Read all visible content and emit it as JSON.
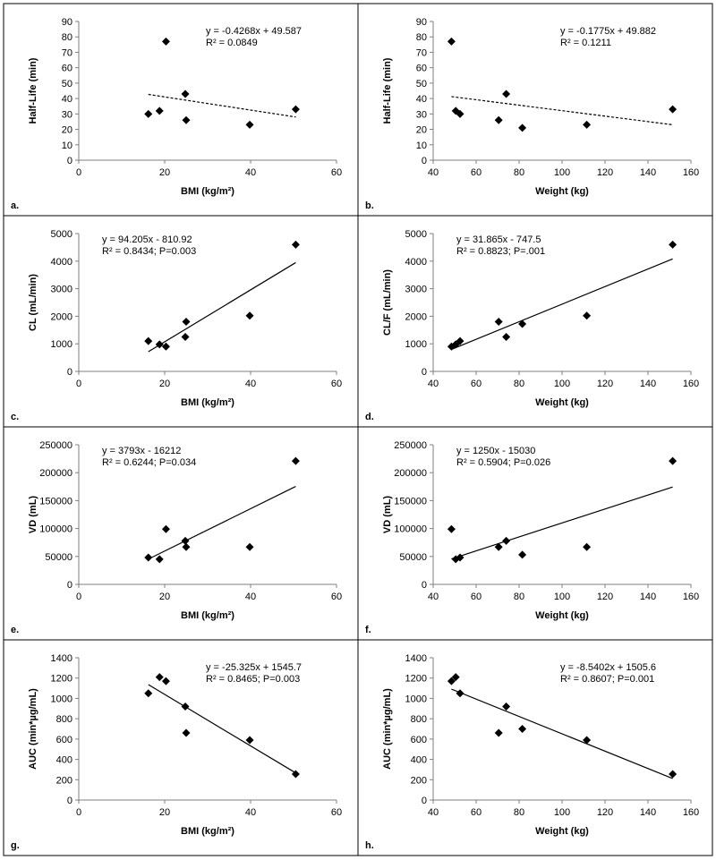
{
  "chart_data": [
    {
      "id": "a",
      "panel_label": "a.",
      "type": "scatter",
      "xlabel": "BMI (kg/m²)",
      "ylabel": "Half-Life (min)",
      "xlim": [
        0,
        60
      ],
      "xticks": [
        0,
        20,
        40,
        60
      ],
      "ylim": [
        0,
        90
      ],
      "yticks": [
        0,
        10,
        20,
        30,
        40,
        50,
        60,
        70,
        80,
        90
      ],
      "x": [
        16.2,
        18.8,
        20.3,
        24.8,
        25.0,
        39.8,
        50.5
      ],
      "y": [
        30,
        32,
        77,
        43,
        26,
        23,
        33
      ],
      "trendline": {
        "slope": -0.4268,
        "intercept": 49.587
      },
      "equation": "y = -0.4268x + 49.587",
      "r2": "R² = 0.0849",
      "trend_style": "dashed"
    },
    {
      "id": "b",
      "panel_label": "b.",
      "type": "scatter",
      "xlabel": "Weight (kg)",
      "ylabel": "Half-Life (min)",
      "xlim": [
        40,
        160
      ],
      "xticks": [
        40,
        60,
        80,
        100,
        120,
        140,
        160
      ],
      "ylim": [
        0,
        90
      ],
      "yticks": [
        0,
        10,
        20,
        30,
        40,
        50,
        60,
        70,
        80,
        90
      ],
      "x": [
        48.5,
        50.5,
        52.5,
        70.5,
        74,
        81.5,
        111.5,
        151.5
      ],
      "y": [
        77,
        32,
        30,
        26,
        43,
        21,
        23,
        33
      ],
      "trendline": {
        "slope": -0.1775,
        "intercept": 49.882
      },
      "equation": "y = -0.1775x + 49.882",
      "r2": "R² = 0.1211",
      "trend_style": "dashed"
    },
    {
      "id": "c",
      "panel_label": "c.",
      "type": "scatter",
      "xlabel": "BMI (kg/m²)",
      "ylabel": "CL (mL/min)",
      "xlim": [
        0,
        60
      ],
      "xticks": [
        0,
        20,
        40,
        60
      ],
      "ylim": [
        0,
        5000
      ],
      "yticks": [
        0,
        1000,
        2000,
        3000,
        4000,
        5000
      ],
      "x": [
        16.2,
        18.8,
        20.3,
        24.8,
        25.0,
        39.8,
        50.5
      ],
      "y": [
        1100,
        980,
        900,
        1250,
        1800,
        2020,
        4600
      ],
      "trendline": {
        "slope": 94.205,
        "intercept": -810.92
      },
      "equation": "y = 94.205x - 810.92",
      "r2": "R² = 0.8434; P=0.003",
      "trend_style": "solid"
    },
    {
      "id": "d",
      "panel_label": "d.",
      "type": "scatter",
      "xlabel": "Weight (kg)",
      "ylabel": "CL/F (mL/min)",
      "xlim": [
        40,
        160
      ],
      "xticks": [
        40,
        60,
        80,
        100,
        120,
        140,
        160
      ],
      "ylim": [
        0,
        5000
      ],
      "yticks": [
        0,
        1000,
        2000,
        3000,
        4000,
        5000
      ],
      "x": [
        48.5,
        50.5,
        52.5,
        70.5,
        74,
        81.5,
        111.5,
        151.5
      ],
      "y": [
        900,
        980,
        1100,
        1800,
        1250,
        1720,
        2020,
        4600
      ],
      "trendline": {
        "slope": 31.865,
        "intercept": -747.5
      },
      "equation": "y = 31.865x - 747.5",
      "r2": "R² = 0.8823; P=.001",
      "trend_style": "solid"
    },
    {
      "id": "e",
      "panel_label": "e.",
      "type": "scatter",
      "xlabel": "BMI (kg/m²)",
      "ylabel": "VD (mL)",
      "xlim": [
        0,
        60
      ],
      "xticks": [
        0,
        20,
        40,
        60
      ],
      "ylim": [
        0,
        250000
      ],
      "yticks": [
        0,
        50000,
        100000,
        150000,
        200000,
        250000
      ],
      "x": [
        16.2,
        18.8,
        20.3,
        24.8,
        25.0,
        39.8,
        50.5
      ],
      "y": [
        48000,
        45000,
        99000,
        78000,
        67000,
        67000,
        221000
      ],
      "trendline": {
        "slope": 3793,
        "intercept": -16212
      },
      "equation": "y = 3793x - 16212",
      "r2": "R² = 0.6244; P=0.034",
      "trend_style": "solid"
    },
    {
      "id": "f",
      "panel_label": "f.",
      "type": "scatter",
      "xlabel": "Weight (kg)",
      "ylabel": "VD (mL)",
      "xlim": [
        40,
        160
      ],
      "xticks": [
        40,
        60,
        80,
        100,
        120,
        140,
        160
      ],
      "ylim": [
        0,
        250000
      ],
      "yticks": [
        0,
        50000,
        100000,
        150000,
        200000,
        250000
      ],
      "x": [
        48.5,
        50.5,
        52.5,
        70.5,
        74,
        81.5,
        111.5,
        151.5
      ],
      "y": [
        99000,
        45000,
        48000,
        67000,
        78000,
        53000,
        67000,
        221000
      ],
      "trendline": {
        "slope": 1250,
        "intercept": -15030
      },
      "equation": "y = 1250x - 15030",
      "r2": "R² = 0.5904; P=0.026",
      "trend_style": "solid"
    },
    {
      "id": "g",
      "panel_label": "g.",
      "type": "scatter",
      "xlabel": "BMI (kg/m²)",
      "ylabel": "AUC (min*µg/mL)",
      "xlim": [
        0,
        60
      ],
      "xticks": [
        0,
        20,
        40,
        60
      ],
      "ylim": [
        0,
        1400
      ],
      "yticks": [
        0,
        200,
        400,
        600,
        800,
        1000,
        1200,
        1400
      ],
      "x": [
        16.2,
        18.8,
        20.3,
        24.8,
        25.0,
        39.8,
        50.5
      ],
      "y": [
        1050,
        1210,
        1170,
        920,
        660,
        590,
        255
      ],
      "trendline": {
        "slope": -25.325,
        "intercept": 1545.7
      },
      "equation": "y = -25.325x + 1545.7",
      "r2": "R² = 0.8465; P=0.003",
      "trend_style": "solid"
    },
    {
      "id": "h",
      "panel_label": "h.",
      "type": "scatter",
      "xlabel": "Weight (kg)",
      "ylabel": "AUC (min*µg/mL)",
      "xlim": [
        40,
        160
      ],
      "xticks": [
        40,
        60,
        80,
        100,
        120,
        140,
        160
      ],
      "ylim": [
        0,
        1400
      ],
      "yticks": [
        0,
        200,
        400,
        600,
        800,
        1000,
        1200,
        1400
      ],
      "x": [
        48.5,
        50.5,
        52.5,
        70.5,
        74,
        81.5,
        111.5,
        151.5
      ],
      "y": [
        1170,
        1210,
        1050,
        660,
        920,
        700,
        590,
        255
      ],
      "trendline": {
        "slope": -8.5402,
        "intercept": 1505.6
      },
      "equation": "y = -8.5402x + 1505.6",
      "r2": "R² = 0.8607; P=0.001",
      "trend_style": "solid"
    }
  ]
}
